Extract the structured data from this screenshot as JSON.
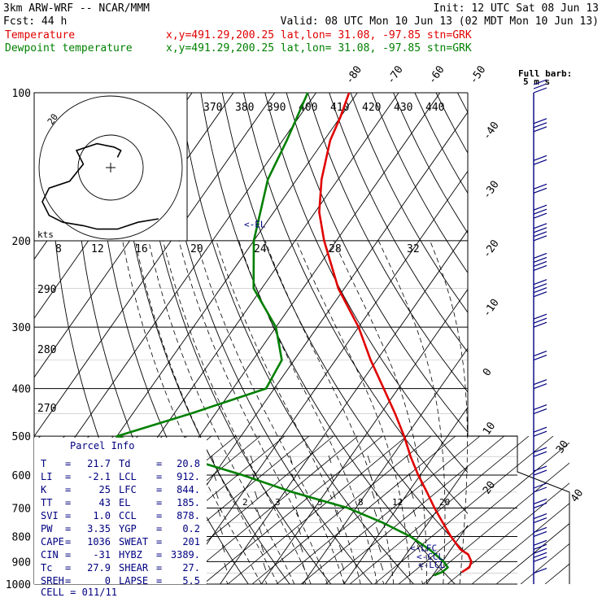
{
  "header": {
    "line1_left": "3km ARW-WRF -- NCAR/MMM",
    "line1_right": "Init: 12 UTC Sat 08 Jun 13",
    "line2_left": "Fcst:    44 h",
    "line2_right": "Valid: 08 UTC Mon 10 Jun 13 (02 MDT Mon 10 Jun 13)",
    "line3_label": "Temperature",
    "line3_info": "x,y=491.29,200.25   lat,lon= 31.08, -97.85  stn=GRK",
    "line4_label": "Dewpoint temperature",
    "line4_info": "x,y=491.29,200.25   lat,lon= 31.08, -97.85  stn=GRK"
  },
  "colors": {
    "temperature": "#e00000",
    "dewpoint": "#008000",
    "parcel_text": "#000080",
    "wind_barbs": "#000080",
    "grid": "#000000"
  },
  "chart_data": {
    "type": "line",
    "subtype": "skew-t log-p sounding",
    "y_axis": {
      "scale": "log",
      "label": "",
      "ticks": [
        100,
        200,
        300,
        400,
        500,
        600,
        700,
        800,
        900,
        1000
      ],
      "range": [
        1000,
        100
      ]
    },
    "isotherm_labels": [
      -80,
      -70,
      -60,
      -50,
      -40,
      -30,
      -20,
      -10,
      0,
      10,
      20,
      30,
      40
    ],
    "theta_labels": [
      370,
      380,
      390,
      400,
      410,
      420,
      430,
      440
    ],
    "upper_mix_labels": [
      8,
      12,
      16,
      20,
      24,
      28,
      32
    ],
    "left_theta_labels": [
      290,
      280,
      270
    ],
    "lower_mix_labels": [
      2,
      3,
      5,
      8,
      12,
      20
    ],
    "series": [
      {
        "name": "Temperature",
        "color": "#e00000",
        "p": [
          945,
          925,
          900,
          870,
          850,
          800,
          750,
          700,
          650,
          600,
          550,
          500,
          450,
          400,
          350,
          300,
          250,
          200,
          175,
          150,
          125,
          112,
          100
        ],
        "t": [
          26.5,
          27.5,
          27.0,
          25.0,
          22.3,
          17.8,
          13.5,
          9.0,
          4.5,
          -0.5,
          -5.5,
          -10.5,
          -16.5,
          -23.5,
          -31.5,
          -40.0,
          -51.5,
          -63.0,
          -69.0,
          -74.0,
          -78.5,
          -80.0,
          -82.0
        ]
      },
      {
        "name": "Dewpoint temperature",
        "color": "#008000",
        "p": [
          960,
          945,
          925,
          900,
          850,
          800,
          750,
          700,
          650,
          600,
          550,
          500,
          450,
          400,
          350,
          300,
          250,
          200,
          150,
          125,
          100
        ],
        "td": [
          20.3,
          21.7,
          22.3,
          20.3,
          14.8,
          8.0,
          -1.0,
          -12.0,
          -28.0,
          -43.0,
          -61.0,
          -80.0,
          -66.0,
          -52.0,
          -53.0,
          -60.0,
          -72.0,
          -80.0,
          -87.0,
          -89.0,
          -92.0
        ]
      }
    ],
    "annotations": [
      {
        "label": "<-EL",
        "p": 185
      },
      {
        "label": "<-LFC",
        "p": 844
      },
      {
        "label": "<-CCL",
        "p": 878
      },
      {
        "label": "<-LCL",
        "p": 912
      }
    ],
    "hodograph": {
      "units": "kts",
      "ring_labels": [
        "20"
      ],
      "u": [
        2,
        3,
        1,
        -4,
        -10,
        -8,
        -12,
        -18,
        -20,
        -18,
        -14,
        -8,
        -4,
        2,
        8,
        14
      ],
      "v": [
        3,
        5,
        6,
        7,
        5,
        1,
        -4,
        -6,
        -10,
        -14,
        -16,
        -17,
        -18,
        -18,
        -16,
        -15
      ]
    },
    "wind_barbs": {
      "header": "Full barb:",
      "subheader": "5 m s",
      "p": [
        100,
        120,
        140,
        160,
        180,
        200,
        230,
        260,
        300,
        350,
        400,
        450,
        500,
        550,
        600,
        650,
        700,
        750,
        800,
        850,
        900,
        950
      ],
      "speed_ms": [
        15,
        15,
        12,
        10,
        15,
        20,
        20,
        20,
        15,
        12,
        10,
        10,
        10,
        10,
        10,
        8,
        8,
        8,
        10,
        12,
        15,
        5
      ],
      "dir_deg": [
        270,
        270,
        260,
        260,
        260,
        250,
        240,
        230,
        230,
        230,
        220,
        220,
        220,
        210,
        200,
        200,
        190,
        180,
        180,
        170,
        170,
        160
      ]
    }
  },
  "parcel_info": {
    "title": "Parcel Info",
    "rows": [
      {
        "l": "T",
        "lv": "21.7",
        "r": "Td",
        "rv": "20.8"
      },
      {
        "l": "LI",
        "lv": "-2.1",
        "r": "LCL",
        "rv": "912."
      },
      {
        "l": "K",
        "lv": "25",
        "r": "LFC",
        "rv": "844."
      },
      {
        "l": "TT",
        "lv": "43",
        "r": "EL",
        "rv": "185."
      },
      {
        "l": "SVI",
        "lv": "1.0",
        "r": "CCL",
        "rv": "878."
      },
      {
        "l": "PW",
        "lv": "3.35",
        "r": "YGP",
        "rv": "0.2"
      },
      {
        "l": "CAPE",
        "lv": "1036",
        "r": "SWEAT",
        "rv": "201"
      },
      {
        "l": "CIN",
        "lv": "-31",
        "r": "HYBZ",
        "rv": "3389."
      },
      {
        "l": "Tc",
        "lv": "27.9",
        "r": "SHEAR",
        "rv": "27."
      },
      {
        "l": "SREH",
        "lv": "0",
        "r": "LAPSE",
        "rv": "5.5"
      }
    ],
    "cell": "CELL = 011/11"
  }
}
